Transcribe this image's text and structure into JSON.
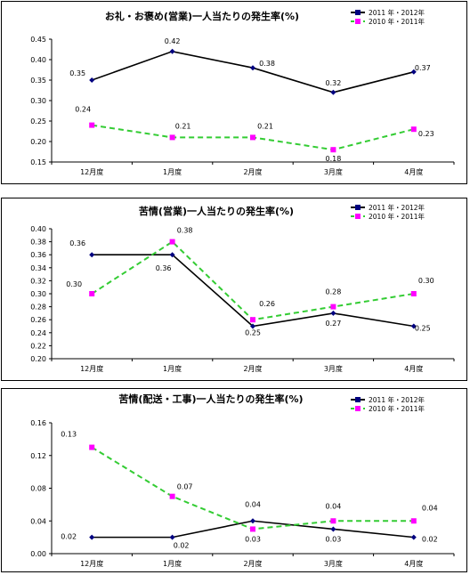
{
  "chart_data": [
    {
      "type": "line",
      "title": "お礼・お褒め(営業)一人当たりの発生率(%)",
      "categories": [
        "12月度",
        "1月度",
        "2月度",
        "3月度",
        "4月度"
      ],
      "ylim": [
        0.15,
        0.45
      ],
      "yticks": [
        "0.15",
        "0.20",
        "0.25",
        "0.30",
        "0.35",
        "0.40",
        "0.45"
      ],
      "legend_position": "top-right",
      "series": [
        {
          "name": "2011 年・2012年",
          "values": [
            0.35,
            0.42,
            0.38,
            0.32,
            0.37
          ],
          "labels": [
            "0.35",
            "0.42",
            "0.38",
            "0.32",
            "0.37"
          ],
          "color": "#000000",
          "marker_color": "#000080",
          "dashed": false
        },
        {
          "name": "2010 年・2011年",
          "values": [
            0.24,
            0.21,
            0.21,
            0.18,
            0.23
          ],
          "labels": [
            "0.24",
            "0.21",
            "0.21",
            "0.18",
            "0.23"
          ],
          "color": "#33cc33",
          "marker_color": "#ff00ff",
          "dashed": true
        }
      ]
    },
    {
      "type": "line",
      "title": "苦情(営業)一人当たりの発生率(%)",
      "categories": [
        "12月度",
        "1月度",
        "2月度",
        "3月度",
        "4月度"
      ],
      "ylim": [
        0.2,
        0.4
      ],
      "yticks": [
        "0.20",
        "0.22",
        "0.24",
        "0.26",
        "0.28",
        "0.30",
        "0.32",
        "0.34",
        "0.36",
        "0.38",
        "0.40"
      ],
      "legend_position": "top-right",
      "series": [
        {
          "name": "2011 年・2012年",
          "values": [
            0.36,
            0.36,
            0.25,
            0.27,
            0.25
          ],
          "labels": [
            "0.36",
            "0.36",
            "0.25",
            "0.27",
            "0.25"
          ],
          "color": "#000000",
          "marker_color": "#000080",
          "dashed": false
        },
        {
          "name": "2010 年・2011年",
          "values": [
            0.3,
            0.38,
            0.26,
            0.28,
            0.3
          ],
          "labels": [
            "0.30",
            "0.38",
            "0.26",
            "0.28",
            "0.30"
          ],
          "color": "#33cc33",
          "marker_color": "#ff00ff",
          "dashed": true
        }
      ]
    },
    {
      "type": "line",
      "title": "苦情(配送・工事)一人当たりの発生率(%)",
      "categories": [
        "12月度",
        "1月度",
        "2月度",
        "3月度",
        "4月度"
      ],
      "ylim": [
        0.0,
        0.16
      ],
      "yticks": [
        "0.00",
        "0.04",
        "0.08",
        "0.12",
        "0.16"
      ],
      "legend_position": "top-right",
      "series": [
        {
          "name": "2011 年・2012年",
          "values": [
            0.02,
            0.02,
            0.04,
            0.03,
            0.02
          ],
          "labels": [
            "0.02",
            "0.02",
            "0.04",
            "0.03",
            "0.02"
          ],
          "color": "#000000",
          "marker_color": "#000080",
          "dashed": false
        },
        {
          "name": "2010 年・2011年",
          "values": [
            0.13,
            0.07,
            0.03,
            0.04,
            0.04
          ],
          "labels": [
            "0.13",
            "0.07",
            "0.03",
            "0.04",
            "0.04"
          ],
          "color": "#33cc33",
          "marker_color": "#ff00ff",
          "dashed": true
        }
      ]
    }
  ]
}
